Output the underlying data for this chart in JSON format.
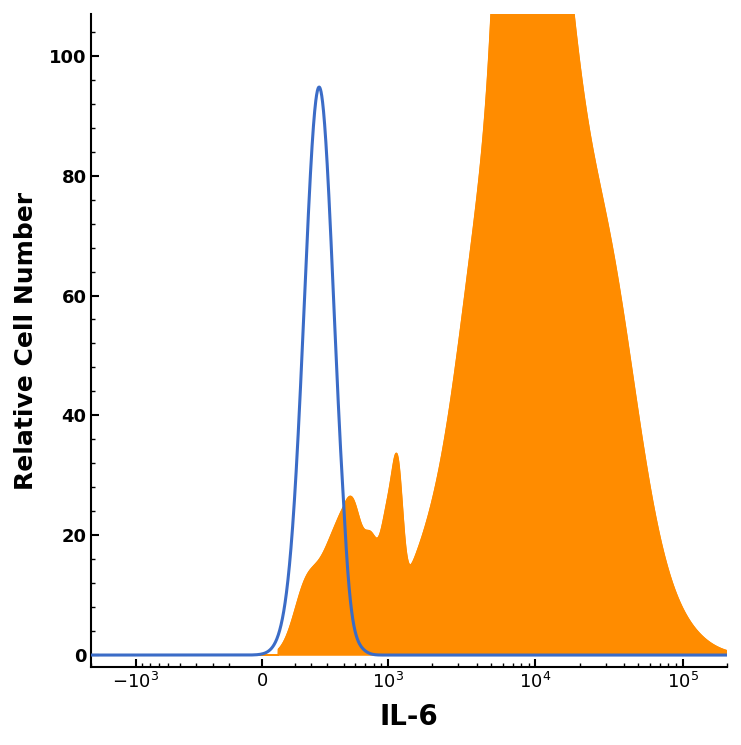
{
  "title": "",
  "xlabel": "IL-6",
  "ylabel": "Relative Cell Number",
  "xlabel_fontsize": 20,
  "ylabel_fontsize": 18,
  "xlabel_fontweight": "bold",
  "ylabel_fontweight": "bold",
  "ylim": [
    -2,
    107
  ],
  "background_color": "#ffffff",
  "orange_color": "#FF8C00",
  "blue_color": "#3B6CC7",
  "blue_linewidth": 2.2,
  "tick_labelsize": 13,
  "linthresh": 500,
  "linscale": 0.5
}
